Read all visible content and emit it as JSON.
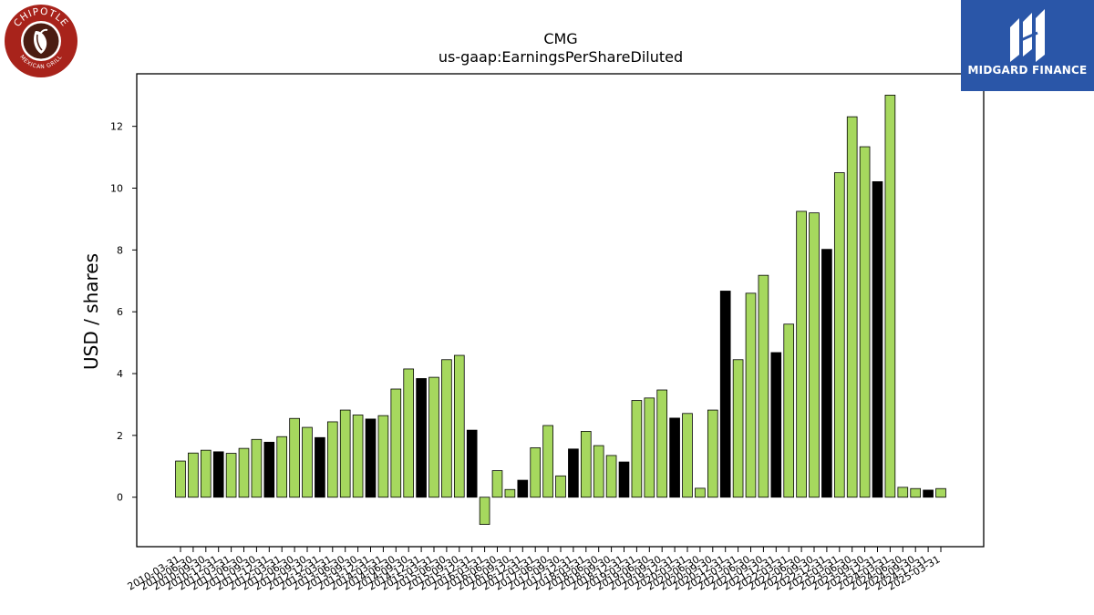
{
  "logos": {
    "left": {
      "text_top": "CHIPOTLE",
      "text_bottom": "MEXICAN GRILL",
      "ring_color": "#a8231b"
    },
    "right": {
      "text": "MIDGARD FINANCE",
      "bg_color": "#2a56a8"
    }
  },
  "chart_data": {
    "type": "bar",
    "title": "CMG",
    "subtitle": "us-gaap:EarningsPerShareDiluted",
    "ylabel": "USD / shares",
    "xlabel": "",
    "ylim": [
      -1.6,
      13.7
    ],
    "yticks": [
      0,
      2,
      4,
      6,
      8,
      10,
      12
    ],
    "grid": false,
    "colors": {
      "quarter": "#a6d85e",
      "fiscal_year": "#000000"
    },
    "categories": [
      "2010-03-31",
      "2010-06-30",
      "2010-09-30",
      "2010-12-31",
      "2011-03-31",
      "2011-06-30",
      "2011-09-30",
      "2011-12-31",
      "2012-03-31",
      "2012-06-30",
      "2012-09-30",
      "2012-12-31",
      "2013-03-31",
      "2013-06-30",
      "2013-09-30",
      "2013-12-31",
      "2014-03-31",
      "2014-06-30",
      "2014-09-30",
      "2014-12-31",
      "2015-03-31",
      "2015-06-30",
      "2015-09-30",
      "2015-12-31",
      "2016-03-31",
      "2016-06-30",
      "2016-09-30",
      "2016-12-31",
      "2017-03-31",
      "2017-06-30",
      "2017-09-30",
      "2017-12-31",
      "2018-03-31",
      "2018-06-30",
      "2018-09-30",
      "2018-12-31",
      "2019-03-31",
      "2019-06-30",
      "2019-09-30",
      "2019-12-31",
      "2020-03-31",
      "2020-06-30",
      "2020-09-30",
      "2020-12-31",
      "2021-03-31",
      "2021-06-30",
      "2021-09-30",
      "2021-12-31",
      "2022-03-31",
      "2022-06-30",
      "2022-09-30",
      "2022-12-31",
      "2023-03-31",
      "2023-06-30",
      "2023-09-30",
      "2023-12-31",
      "2024-03-31",
      "2024-06-30",
      "2024-09-30",
      "2024-12-31",
      "2025-03-31"
    ],
    "values": [
      1.17,
      1.43,
      1.52,
      1.47,
      1.42,
      1.58,
      1.87,
      1.78,
      1.96,
      2.55,
      2.26,
      1.93,
      2.44,
      2.82,
      2.66,
      2.53,
      2.64,
      3.5,
      4.15,
      3.84,
      3.88,
      4.45,
      4.59,
      2.17,
      -0.88,
      0.86,
      0.25,
      0.55,
      1.6,
      2.32,
      0.69,
      1.56,
      2.13,
      1.67,
      1.35,
      1.14,
      3.13,
      3.21,
      3.47,
      2.56,
      2.71,
      0.29,
      2.82,
      6.67,
      4.45,
      6.6,
      7.18,
      4.68,
      5.6,
      9.25,
      9.2,
      8.02,
      10.5,
      12.31,
      11.34,
      10.21,
      13.01,
      0.32,
      0.28,
      0.23,
      0.28
    ],
    "period_type": [
      "q",
      "q",
      "q",
      "fy",
      "q",
      "q",
      "q",
      "fy",
      "q",
      "q",
      "q",
      "fy",
      "q",
      "q",
      "q",
      "fy",
      "q",
      "q",
      "q",
      "fy",
      "q",
      "q",
      "q",
      "fy",
      "q",
      "q",
      "q",
      "fy",
      "q",
      "q",
      "q",
      "fy",
      "q",
      "q",
      "q",
      "fy",
      "q",
      "q",
      "q",
      "fy",
      "q",
      "q",
      "q",
      "fy",
      "q",
      "q",
      "q",
      "fy",
      "q",
      "q",
      "q",
      "fy",
      "q",
      "q",
      "q",
      "fy",
      "q",
      "q",
      "q",
      "fy",
      "q"
    ]
  }
}
